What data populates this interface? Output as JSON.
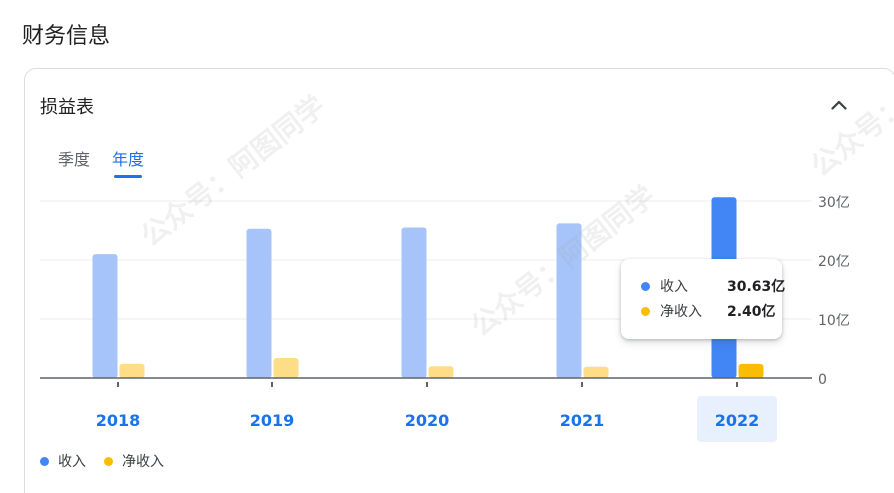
{
  "page": {
    "title": "财务信息"
  },
  "card": {
    "title": "损益表",
    "collapse_icon": "chevron-up-icon"
  },
  "tabs": [
    {
      "label": "季度",
      "active": false
    },
    {
      "label": "年度",
      "active": true
    }
  ],
  "tooltip": {
    "rows": [
      {
        "name": "收入",
        "value": "30.63亿"
      },
      {
        "name": "净收入",
        "value": "2.40亿"
      }
    ]
  },
  "watermark": "公众号：阿图同学",
  "colors": {
    "revenue": "#4285f4",
    "revenue_faded": "#a7c4fa",
    "net_income": "#fbbc04",
    "net_income_faded": "#fddd88",
    "accent": "#1a73e8"
  },
  "chart_data": {
    "type": "bar",
    "categories": [
      "2018",
      "2019",
      "2020",
      "2021",
      "2022"
    ],
    "selected_category": "2022",
    "series": [
      {
        "name": "收入",
        "values": [
          21.0,
          25.3,
          25.5,
          26.2,
          30.63
        ]
      },
      {
        "name": "净收入",
        "values": [
          2.4,
          3.4,
          2.0,
          1.9,
          2.4
        ]
      }
    ],
    "yticks": [
      "0",
      "10亿",
      "20亿",
      "30亿"
    ],
    "ylim": [
      0,
      30
    ],
    "grid": true,
    "legend_position": "bottom-left"
  }
}
